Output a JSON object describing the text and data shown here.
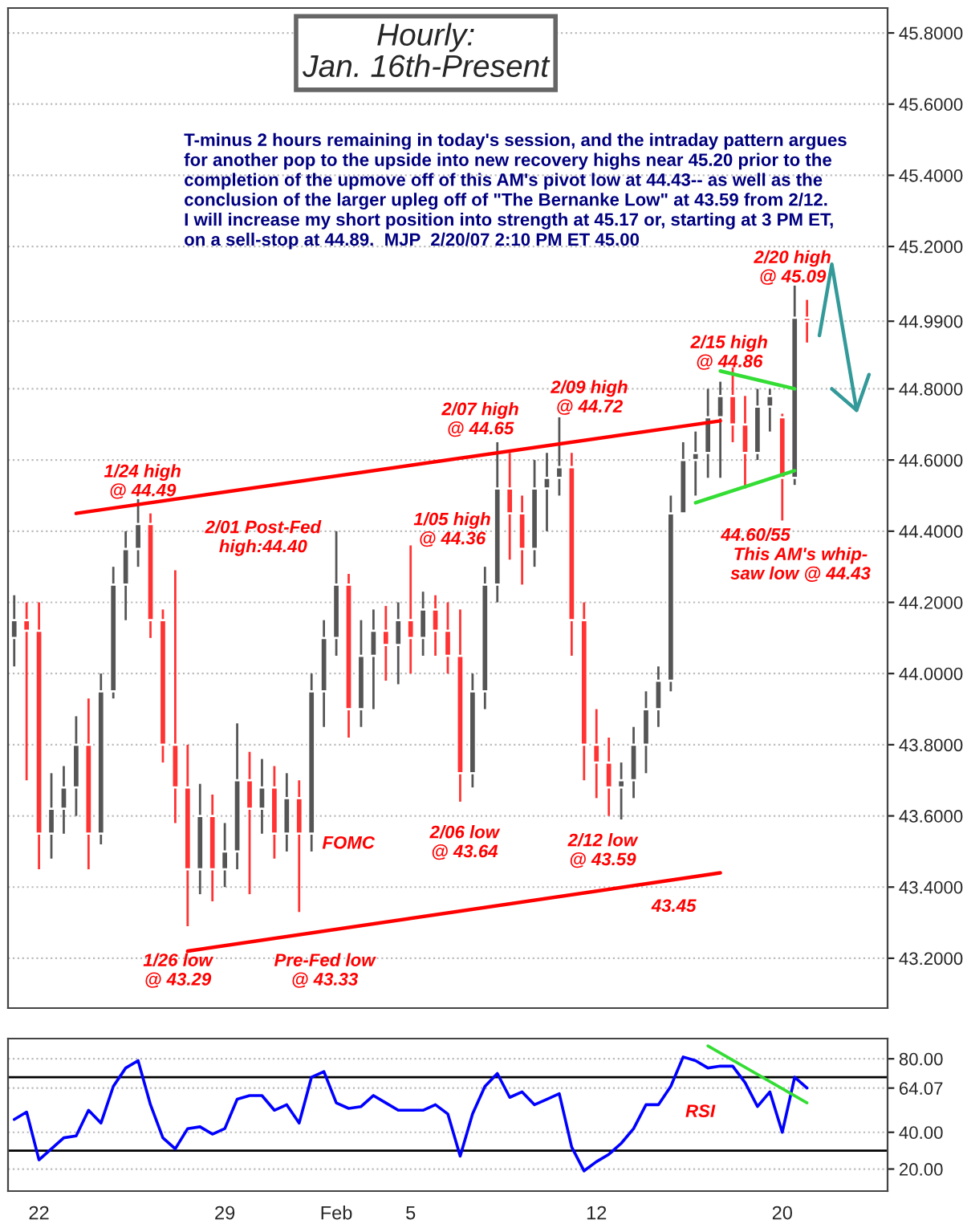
{
  "chart_data": [
    {
      "type": "candlestick",
      "title": "Hourly:\nJan. 16th-Present",
      "subtitle": "T-minus 2 hours remaining in today's session, and the intraday pattern argues\nfor another pop to the upside into new recovery highs near 45.20 prior to the\ncompletion of the upmove off of this AM's pivot low at 44.43-- as well as the\nconclusion of the larger upleg off of \"The Bernanke Low\" at 43.59 from 2/12.\nI will increase my short position into strength at 45.17 or, starting at 3 PM ET,\non a sell-stop at 44.89.  MJP  2/20/07 2:10 PM ET 45.00",
      "categories": [
        null,
        null,
        null,
        null,
        null,
        null,
        null,
        null,
        null,
        null,
        null,
        null,
        null,
        null,
        null,
        null,
        null,
        null,
        null,
        null,
        null,
        null,
        null,
        null,
        null,
        null,
        null,
        null,
        null,
        null,
        null,
        null,
        null,
        null,
        null,
        null,
        null,
        null,
        null,
        null,
        null,
        null,
        null,
        null,
        null,
        null,
        null,
        null,
        null,
        null,
        null,
        null,
        null,
        null,
        null,
        null,
        null,
        null,
        null,
        null,
        null,
        null,
        null,
        null,
        null,
        null,
        null,
        null,
        null,
        null,
        null
      ],
      "ohlc": [
        [
          44.1,
          44.22,
          44.02,
          44.15
        ],
        [
          44.15,
          44.2,
          43.7,
          44.12
        ],
        [
          44.12,
          44.2,
          43.45,
          43.55
        ],
        [
          43.55,
          43.72,
          43.48,
          43.62
        ],
        [
          43.62,
          43.74,
          43.55,
          43.68
        ],
        [
          43.68,
          43.88,
          43.6,
          43.8
        ],
        [
          43.8,
          43.93,
          43.45,
          43.55
        ],
        [
          43.55,
          44.0,
          43.52,
          43.95
        ],
        [
          43.95,
          44.3,
          43.93,
          44.25
        ],
        [
          44.25,
          44.4,
          44.15,
          44.35
        ],
        [
          44.35,
          44.49,
          44.3,
          44.42
        ],
        [
          44.42,
          44.45,
          44.1,
          44.15
        ],
        [
          44.15,
          44.18,
          43.75,
          43.8
        ],
        [
          43.8,
          44.29,
          43.58,
          43.68
        ],
        [
          43.68,
          43.8,
          43.29,
          43.45
        ],
        [
          43.45,
          43.69,
          43.38,
          43.6
        ],
        [
          43.6,
          43.66,
          43.36,
          43.45
        ],
        [
          43.45,
          43.58,
          43.4,
          43.5
        ],
        [
          43.5,
          43.86,
          43.45,
          43.7
        ],
        [
          43.7,
          43.78,
          43.38,
          43.62
        ],
        [
          43.62,
          43.76,
          43.55,
          43.68
        ],
        [
          43.68,
          43.74,
          43.48,
          43.55
        ],
        [
          43.55,
          43.72,
          43.5,
          43.65
        ],
        [
          43.65,
          43.7,
          43.33,
          43.55
        ],
        [
          43.55,
          44.0,
          43.5,
          43.95
        ],
        [
          43.95,
          44.15,
          43.85,
          44.1
        ],
        [
          44.1,
          44.4,
          44.05,
          44.25
        ],
        [
          44.25,
          44.28,
          43.82,
          43.9
        ],
        [
          43.9,
          44.15,
          43.85,
          44.05
        ],
        [
          44.05,
          44.18,
          43.9,
          44.12
        ],
        [
          44.12,
          44.19,
          43.98,
          44.08
        ],
        [
          44.08,
          44.2,
          43.97,
          44.15
        ],
        [
          44.15,
          44.36,
          44.0,
          44.1
        ],
        [
          44.1,
          44.23,
          44.05,
          44.18
        ],
        [
          44.18,
          44.22,
          44.05,
          44.12
        ],
        [
          44.12,
          44.2,
          44.0,
          44.05
        ],
        [
          44.05,
          44.18,
          43.64,
          43.72
        ],
        [
          43.72,
          44.0,
          43.68,
          43.95
        ],
        [
          43.95,
          44.3,
          43.9,
          44.25
        ],
        [
          44.25,
          44.65,
          44.2,
          44.52
        ],
        [
          44.52,
          44.62,
          44.32,
          44.45
        ],
        [
          44.45,
          44.5,
          44.25,
          44.35
        ],
        [
          44.35,
          44.6,
          44.3,
          44.52
        ],
        [
          44.52,
          44.62,
          44.4,
          44.55
        ],
        [
          44.55,
          44.72,
          44.5,
          44.58
        ],
        [
          44.58,
          44.62,
          44.05,
          44.15
        ],
        [
          44.15,
          44.2,
          43.7,
          43.8
        ],
        [
          43.8,
          43.9,
          43.65,
          43.75
        ],
        [
          43.75,
          43.82,
          43.6,
          43.68
        ],
        [
          43.68,
          43.75,
          43.59,
          43.7
        ],
        [
          43.7,
          43.85,
          43.65,
          43.8
        ],
        [
          43.8,
          43.95,
          43.72,
          43.9
        ],
        [
          43.9,
          44.02,
          43.85,
          43.98
        ],
        [
          43.98,
          44.5,
          43.95,
          44.45
        ],
        [
          44.45,
          44.65,
          44.45,
          44.6
        ],
        [
          44.6,
          44.68,
          44.5,
          44.62
        ],
        [
          44.62,
          44.8,
          44.55,
          44.72
        ],
        [
          44.72,
          44.82,
          44.55,
          44.78
        ],
        [
          44.78,
          44.86,
          44.65,
          44.7
        ],
        [
          44.7,
          44.78,
          44.52,
          44.62
        ],
        [
          44.62,
          44.8,
          44.6,
          44.75
        ],
        [
          44.75,
          44.8,
          44.68,
          44.78
        ],
        [
          44.72,
          44.73,
          44.43,
          44.55
        ],
        [
          44.55,
          45.09,
          44.53,
          45.0
        ],
        [
          45.0,
          45.05,
          44.93,
          44.99
        ],
        null,
        null,
        null,
        null,
        null,
        null
      ],
      "series": [
        {
          "type": "line",
          "color": "#ff0000",
          "values": [
            null,
            null,
            null,
            null,
            null,
            44.45,
            null,
            null,
            null,
            null,
            null,
            null,
            null,
            null,
            null,
            null,
            null,
            null,
            null,
            null,
            null,
            null,
            null,
            null,
            null,
            null,
            null,
            null,
            null,
            null,
            null,
            null,
            null,
            null,
            null,
            null,
            null,
            null,
            null,
            null,
            null,
            null,
            null,
            null,
            null,
            null,
            null,
            null,
            null,
            null,
            null,
            null,
            null,
            null,
            null,
            null,
            null,
            44.71,
            null,
            null,
            null,
            null,
            null,
            null,
            null,
            null,
            null,
            null,
            null,
            null,
            null
          ]
        },
        {
          "type": "line",
          "color": "#ff0000",
          "values": [
            null,
            null,
            null,
            null,
            null,
            null,
            null,
            null,
            null,
            null,
            null,
            null,
            null,
            null,
            43.22,
            null,
            null,
            null,
            null,
            null,
            null,
            null,
            null,
            null,
            null,
            null,
            null,
            null,
            null,
            null,
            null,
            null,
            null,
            null,
            null,
            null,
            null,
            null,
            null,
            null,
            null,
            null,
            null,
            null,
            null,
            null,
            null,
            null,
            null,
            null,
            null,
            null,
            null,
            null,
            null,
            null,
            null,
            43.44,
            null,
            null,
            null,
            null,
            null,
            null,
            null,
            null,
            null,
            null,
            null,
            null,
            null
          ]
        },
        {
          "type": "line",
          "color": "#33dd33",
          "values": [
            null,
            null,
            null,
            null,
            null,
            null,
            null,
            null,
            null,
            null,
            null,
            null,
            null,
            null,
            null,
            null,
            null,
            null,
            null,
            null,
            null,
            null,
            null,
            null,
            null,
            null,
            null,
            null,
            null,
            null,
            null,
            null,
            null,
            null,
            null,
            null,
            null,
            null,
            null,
            null,
            null,
            null,
            null,
            null,
            null,
            null,
            null,
            null,
            null,
            null,
            null,
            null,
            null,
            null,
            null,
            null,
            null,
            44.85,
            null,
            null,
            null,
            null,
            null,
            44.8,
            null,
            null,
            null,
            null,
            null,
            null,
            null
          ]
        },
        {
          "type": "line",
          "color": "#33dd33",
          "values": [
            null,
            null,
            null,
            null,
            null,
            null,
            null,
            null,
            null,
            null,
            null,
            null,
            null,
            null,
            null,
            null,
            null,
            null,
            null,
            null,
            null,
            null,
            null,
            null,
            null,
            null,
            null,
            null,
            null,
            null,
            null,
            null,
            null,
            null,
            null,
            null,
            null,
            null,
            null,
            null,
            null,
            null,
            null,
            null,
            null,
            null,
            null,
            null,
            null,
            null,
            null,
            null,
            null,
            null,
            null,
            44.48,
            null,
            null,
            null,
            null,
            null,
            null,
            null,
            44.57,
            null,
            null,
            null,
            null,
            null,
            null,
            null
          ]
        },
        {
          "type": "line",
          "color": "#339999",
          "values": [
            null,
            null,
            null,
            null,
            null,
            null,
            null,
            null,
            null,
            null,
            null,
            null,
            null,
            null,
            null,
            null,
            null,
            null,
            null,
            null,
            null,
            null,
            null,
            null,
            null,
            null,
            null,
            null,
            null,
            null,
            null,
            null,
            null,
            null,
            null,
            null,
            null,
            null,
            null,
            null,
            null,
            null,
            null,
            null,
            null,
            null,
            null,
            null,
            null,
            null,
            null,
            null,
            null,
            null,
            null,
            null,
            null,
            null,
            null,
            null,
            null,
            null,
            null,
            null,
            null,
            44.95,
            45.15,
            null,
            44.74,
            null,
            null
          ]
        },
        {
          "type": "line",
          "color": "#339999",
          "values": [
            null,
            null,
            null,
            null,
            null,
            null,
            null,
            null,
            null,
            null,
            null,
            null,
            null,
            null,
            null,
            null,
            null,
            null,
            null,
            null,
            null,
            null,
            null,
            null,
            null,
            null,
            null,
            null,
            null,
            null,
            null,
            null,
            null,
            null,
            null,
            null,
            null,
            null,
            null,
            null,
            null,
            null,
            null,
            null,
            null,
            null,
            null,
            null,
            null,
            null,
            null,
            null,
            null,
            null,
            null,
            null,
            null,
            null,
            null,
            null,
            null,
            null,
            null,
            null,
            null,
            null,
            44.8,
            null,
            44.74,
            44.84,
            null
          ]
        }
      ],
      "annotations": [
        "1/24 high\n@ 44.49",
        "2/01 Post-Fed\nhigh:44.40",
        "1/05 high\n@ 44.36",
        "2/07 high\n@ 44.65",
        "2/09 high\n@ 44.72",
        "2/15 high\n@ 44.86",
        "2/20 high\n@ 45.09",
        "44.60/55",
        "This AM's whip-\nsaw low @ 44.43",
        "FOMC",
        "2/06 low\n@ 43.64",
        "2/12 low\n@ 43.59",
        "43.45",
        "1/26 low\n@ 43.29",
        "Pre-Fed low\n@ 43.33"
      ],
      "ylim": [
        43.06,
        45.87
      ],
      "yticks": [
        {
          "value": 45.8,
          "label": "45.8000"
        },
        {
          "value": 45.6,
          "label": "45.6000"
        },
        {
          "value": 45.4,
          "label": "45.4000"
        },
        {
          "value": 45.2,
          "label": "45.2000"
        },
        {
          "value": 44.99,
          "label": "44.9900"
        },
        {
          "value": 44.8,
          "label": "44.8000"
        },
        {
          "value": 44.6,
          "label": "44.6000"
        },
        {
          "value": 44.4,
          "label": "44.4000"
        },
        {
          "value": 44.2,
          "label": "44.2000"
        },
        {
          "value": 44.0,
          "label": "44.0000"
        },
        {
          "value": 43.8,
          "label": "43.8000"
        },
        {
          "value": 43.6,
          "label": "43.6000"
        },
        {
          "value": 43.4,
          "label": "43.4000"
        },
        {
          "value": 43.2,
          "label": "43.2000"
        }
      ],
      "tick_labels": "y",
      "grid": "y"
    },
    {
      "type": "line",
      "categories": [
        null,
        null,
        "22",
        null,
        null,
        null,
        null,
        null,
        null,
        null,
        null,
        null,
        null,
        null,
        null,
        null,
        null,
        "29",
        null,
        null,
        null,
        null,
        null,
        null,
        null,
        null,
        "Feb",
        null,
        null,
        null,
        null,
        null,
        "5",
        null,
        null,
        null,
        null,
        null,
        null,
        null,
        null,
        null,
        null,
        null,
        null,
        null,
        null,
        "12",
        null,
        null,
        null,
        null,
        null,
        null,
        null,
        null,
        null,
        null,
        null,
        null,
        null,
        null,
        "20",
        null,
        null,
        null,
        null,
        null,
        null,
        null,
        null
      ],
      "series": [
        {
          "color": "#0000ff",
          "values": [
            47,
            51,
            25,
            31,
            37,
            38,
            52,
            45,
            65,
            75,
            79,
            55,
            37,
            31,
            42,
            43,
            39,
            42,
            58,
            60,
            60,
            52,
            55,
            45,
            70,
            73,
            56,
            53,
            54,
            60,
            56,
            52,
            52,
            52,
            55,
            50,
            27,
            50,
            65,
            72,
            59,
            62,
            55,
            58,
            61,
            32,
            19,
            24,
            28,
            34,
            42,
            55,
            55,
            65,
            81,
            79,
            75,
            76,
            76,
            67,
            54,
            62,
            40,
            70,
            64.07,
            null,
            null,
            null,
            null,
            null,
            null
          ]
        },
        {
          "color": "#33dd33",
          "values": [
            null,
            null,
            null,
            null,
            null,
            null,
            null,
            null,
            null,
            null,
            null,
            null,
            null,
            null,
            null,
            null,
            null,
            null,
            null,
            null,
            null,
            null,
            null,
            null,
            null,
            null,
            null,
            null,
            null,
            null,
            null,
            null,
            null,
            null,
            null,
            null,
            null,
            null,
            null,
            null,
            null,
            null,
            null,
            null,
            null,
            null,
            null,
            null,
            null,
            null,
            null,
            null,
            null,
            null,
            null,
            null,
            87,
            null,
            null,
            null,
            null,
            null,
            null,
            null,
            56,
            null,
            null,
            null,
            null,
            null,
            null
          ]
        }
      ],
      "annotations": [
        "RSI"
      ],
      "ref_lines": [
        {
          "axis": "y",
          "value": 70,
          "color": "#000000"
        },
        {
          "axis": "y",
          "value": 30,
          "color": "#000000"
        }
      ],
      "ylim": [
        8,
        91
      ],
      "yticks": [
        {
          "value": 20,
          "label": "20.00"
        },
        {
          "value": 40,
          "label": "40.00"
        },
        {
          "value": 64.07,
          "label": "64.07"
        },
        {
          "value": 80,
          "label": "80.00"
        }
      ],
      "grid": "y"
    }
  ]
}
